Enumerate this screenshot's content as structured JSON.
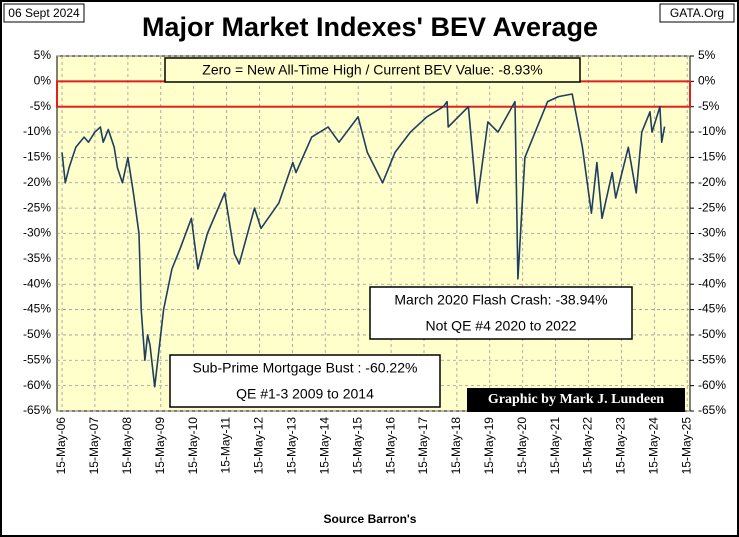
{
  "chart_data": {
    "type": "line",
    "title": "Major Market Indexes' BEV Average",
    "date_label": "06 Sept 2024",
    "site_label": "GATA.Org",
    "x_axis_label": "Source Barron's",
    "annotations": {
      "zero_note": "Zero = New All-Time High / Current BEV Value:  -8.93%",
      "crash_title": "March 2020 Flash Crash:  -38.94%",
      "crash_note": "Not QE #4 2020 to 2022",
      "subprime_title": "Sub-Prime Mortgage Bust : -60.22%",
      "subprime_note": "QE #1-3 2009 to 2014",
      "credit": "Graphic by Mark J. Lundeen"
    },
    "color": "#1f3f5f",
    "highlight_band": [
      0,
      -5
    ],
    "highlight_color": "#e02020",
    "grid": true,
    "x": [
      "2006-05-15",
      "2006-06-20",
      "2006-08-01",
      "2006-10-15",
      "2007-01-15",
      "2007-03-05",
      "2007-05-15",
      "2007-07-15",
      "2007-08-15",
      "2007-10-10",
      "2007-12-15",
      "2008-01-20",
      "2008-03-15",
      "2008-05-15",
      "2008-07-15",
      "2008-09-15",
      "2008-10-10",
      "2008-11-20",
      "2008-12-20",
      "2009-01-15",
      "2009-03-09",
      "2009-06-15",
      "2009-09-15",
      "2009-12-15",
      "2010-04-20",
      "2010-07-01",
      "2010-10-15",
      "2011-04-25",
      "2011-08-10",
      "2011-10-03",
      "2012-03-20",
      "2012-06-01",
      "2012-12-15",
      "2013-05-20",
      "2013-06-24",
      "2013-12-15",
      "2014-06-15",
      "2014-10-15",
      "2015-05-15",
      "2015-08-25",
      "2016-02-11",
      "2016-06-27",
      "2016-12-15",
      "2017-06-15",
      "2017-12-15",
      "2018-01-26",
      "2018-02-08",
      "2018-09-20",
      "2018-12-24",
      "2019-04-25",
      "2019-08-15",
      "2020-02-19",
      "2020-03-23",
      "2020-06-08",
      "2020-11-15",
      "2021-02-15",
      "2021-06-15",
      "2021-11-15",
      "2022-01-03",
      "2022-03-08",
      "2022-06-16",
      "2022-08-16",
      "2022-10-12",
      "2023-02-02",
      "2023-03-13",
      "2023-07-31",
      "2023-10-27",
      "2023-12-28",
      "2024-03-28",
      "2024-04-19",
      "2024-07-16",
      "2024-08-05",
      "2024-09-06"
    ],
    "values": [
      -14,
      -20,
      -17,
      -13,
      -11,
      -12,
      -10,
      -9,
      -12,
      -9.5,
      -13,
      -17,
      -20,
      -15,
      -22,
      -30,
      -45,
      -55,
      -50,
      -52,
      -60.22,
      -45,
      -37,
      -33,
      -27,
      -37,
      -30,
      -22,
      -34,
      -36,
      -25,
      -29,
      -24,
      -16,
      -18,
      -11,
      -9,
      -12,
      -7,
      -14,
      -20,
      -14,
      -10,
      -7,
      -5,
      -4,
      -9,
      -5,
      -24,
      -8,
      -10,
      -4,
      -38.94,
      -15,
      -8,
      -4,
      -3,
      -2.5,
      -7,
      -13,
      -26,
      -16,
      -27,
      -18,
      -23,
      -13,
      -22,
      -10,
      -6,
      -10,
      -5,
      -12,
      -8.93
    ],
    "xlim": [
      "2006-03-20",
      "2025-06-15"
    ],
    "xticks": [
      {
        "value": "2006-05-15",
        "label": "15-May-06"
      },
      {
        "value": "2007-05-15",
        "label": "15-May-07"
      },
      {
        "value": "2008-05-15",
        "label": "15-May-08"
      },
      {
        "value": "2009-05-15",
        "label": "15-May-09"
      },
      {
        "value": "2010-05-15",
        "label": "15-May-10"
      },
      {
        "value": "2011-05-15",
        "label": "15-May-11"
      },
      {
        "value": "2012-05-15",
        "label": "15-May-12"
      },
      {
        "value": "2013-05-15",
        "label": "15-May-13"
      },
      {
        "value": "2014-05-15",
        "label": "15-May-14"
      },
      {
        "value": "2015-05-15",
        "label": "15-May-15"
      },
      {
        "value": "2016-05-15",
        "label": "15-May-16"
      },
      {
        "value": "2017-05-15",
        "label": "15-May-17"
      },
      {
        "value": "2018-05-15",
        "label": "15-May-18"
      },
      {
        "value": "2019-05-15",
        "label": "15-May-19"
      },
      {
        "value": "2020-05-15",
        "label": "15-May-20"
      },
      {
        "value": "2021-05-15",
        "label": "15-May-21"
      },
      {
        "value": "2022-05-15",
        "label": "15-May-22"
      },
      {
        "value": "2023-05-15",
        "label": "15-May-23"
      },
      {
        "value": "2024-05-15",
        "label": "15-May-24"
      },
      {
        "value": "2025-05-15",
        "label": "15-May-25"
      }
    ],
    "ylim": [
      -65,
      5
    ],
    "yticks": [
      {
        "value": 5,
        "label": "5%"
      },
      {
        "value": 0,
        "label": "0%"
      },
      {
        "value": -5,
        "label": "-5%"
      },
      {
        "value": -10,
        "label": "-10%"
      },
      {
        "value": -15,
        "label": "-15%"
      },
      {
        "value": -20,
        "label": "-20%"
      },
      {
        "value": -25,
        "label": "-25%"
      },
      {
        "value": -30,
        "label": "-30%"
      },
      {
        "value": -35,
        "label": "-35%"
      },
      {
        "value": -40,
        "label": "-40%"
      },
      {
        "value": -45,
        "label": "-45%"
      },
      {
        "value": -50,
        "label": "-50%"
      },
      {
        "value": -55,
        "label": "-55%"
      },
      {
        "value": -60,
        "label": "-60%"
      },
      {
        "value": -65,
        "label": "-65%"
      }
    ],
    "y2lim": [
      -65,
      5
    ],
    "y2ticks": [
      {
        "value": 5,
        "label": "5%"
      },
      {
        "value": 0,
        "label": "0%"
      },
      {
        "value": -5,
        "label": "-5%"
      },
      {
        "value": -10,
        "label": "-10%"
      },
      {
        "value": -15,
        "label": "-15%"
      },
      {
        "value": -20,
        "label": "-20%"
      },
      {
        "value": -25,
        "label": "-25%"
      },
      {
        "value": -30,
        "label": "-30%"
      },
      {
        "value": -35,
        "label": "-35%"
      },
      {
        "value": -40,
        "label": "-40%"
      },
      {
        "value": -45,
        "label": "-45%"
      },
      {
        "value": -50,
        "label": "-50%"
      },
      {
        "value": -55,
        "label": "-55%"
      },
      {
        "value": -60,
        "label": "-60%"
      },
      {
        "value": -65,
        "label": "-65%"
      }
    ]
  }
}
